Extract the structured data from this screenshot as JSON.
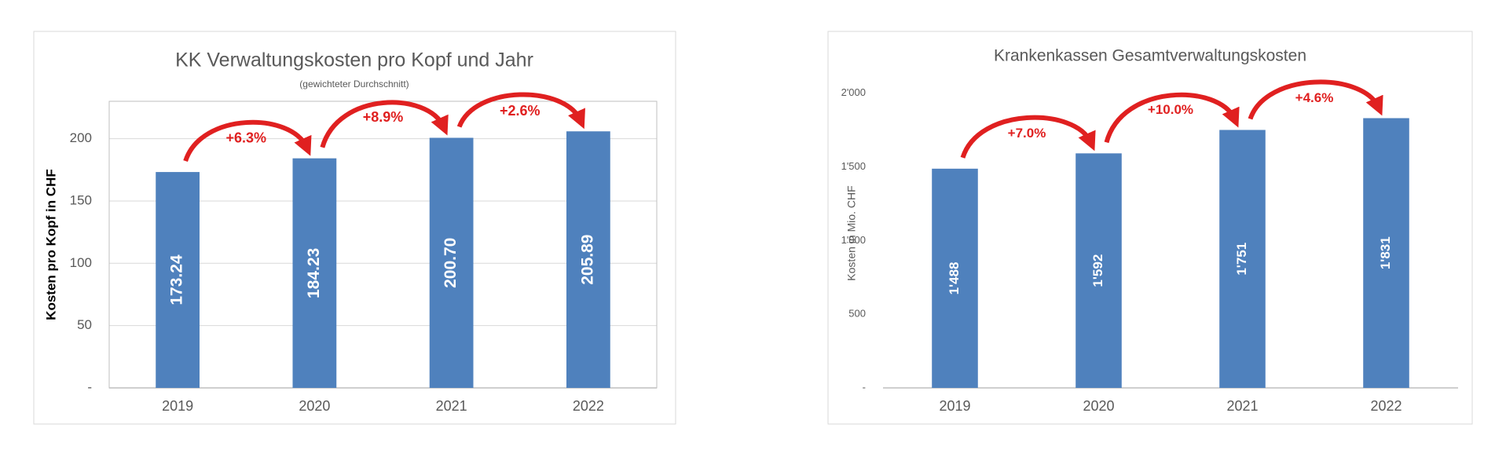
{
  "chart_data": [
    {
      "type": "bar",
      "title": "KK Verwaltungskosten  pro Kopf und Jahr",
      "subtitle": "(gewichteter Durchschnitt)",
      "y_label": "Kosten pro Kopf in CHF",
      "categories": [
        "2019",
        "2020",
        "2021",
        "2022"
      ],
      "values": [
        173.24,
        184.23,
        200.7,
        205.89
      ],
      "value_labels": [
        "173.24",
        "184.23",
        "200.70",
        "205.89"
      ],
      "annotations": [
        "+6.3%",
        "+8.9%",
        "+2.6%"
      ],
      "color": "#4f81bd",
      "annotation_color": "#e02020",
      "ylim": [
        0,
        230
      ],
      "yticks": [
        {
          "value": 0,
          "label": "-"
        },
        50,
        100,
        150,
        200
      ],
      "grid": true
    },
    {
      "type": "bar",
      "title": "Krankenkassen Gesamtverwaltungskosten",
      "y_label": "Kosten in Mio. CHF",
      "categories": [
        "2019",
        "2020",
        "2021",
        "2022"
      ],
      "values": [
        1488,
        1592,
        1751,
        1831
      ],
      "value_labels": [
        "1'488",
        "1'592",
        "1'751",
        "1'831"
      ],
      "annotations": [
        "+7.0%",
        "+10.0%",
        "+4.6%"
      ],
      "color": "#4f81bd",
      "annotation_color": "#e02020",
      "ylim": [
        0,
        2100
      ],
      "yticks": [
        {
          "value": 0,
          "label": "-"
        },
        500,
        {
          "value": 1000,
          "label": "1'000"
        },
        {
          "value": 1500,
          "label": "1'500"
        },
        {
          "value": 2000,
          "label": "2'000"
        }
      ],
      "grid": false
    }
  ]
}
